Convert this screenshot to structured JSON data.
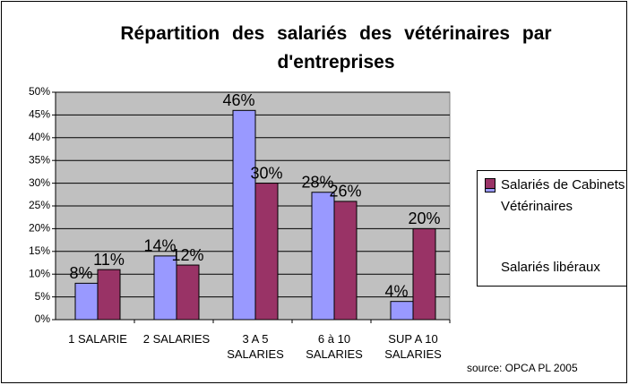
{
  "chart_data": {
    "type": "bar",
    "title": "Répartition des salariés des vétérinaires par d'entreprises",
    "categories": [
      "1 SALARIE",
      "2 SALARIES",
      "3 A 5 SALARIES",
      "6 à 10 SALARIES",
      "SUP A 10 SALARIES"
    ],
    "series": [
      {
        "name": "Salariés de Cabinets Vétérinaires",
        "color": "#9999ff",
        "values": [
          8,
          14,
          46,
          28,
          4
        ],
        "value_labels": [
          "8%",
          "14%",
          "46%",
          "28%",
          "4%"
        ]
      },
      {
        "name": "Salariés libéraux",
        "color": "#993366",
        "values": [
          11,
          12,
          30,
          26,
          20
        ],
        "value_labels": [
          "11%",
          "12%",
          "30%",
          "26%",
          "20%"
        ]
      }
    ],
    "ylim": [
      0,
      50
    ],
    "yticks": [
      {
        "value": 0,
        "label": "0%"
      },
      {
        "value": 5,
        "label": "5%"
      },
      {
        "value": 10,
        "label": "10%"
      },
      {
        "value": 15,
        "label": "15%"
      },
      {
        "value": 20,
        "label": "20%"
      },
      {
        "value": 25,
        "label": "25%"
      },
      {
        "value": 30,
        "label": "30%"
      },
      {
        "value": 35,
        "label": "35%"
      },
      {
        "value": 40,
        "label": "40%"
      },
      {
        "value": 45,
        "label": "45%"
      },
      {
        "value": 50,
        "label": "50%"
      }
    ],
    "grid": true,
    "legend": "right",
    "annotations": [
      "source: OPCA PL 2005"
    ]
  }
}
